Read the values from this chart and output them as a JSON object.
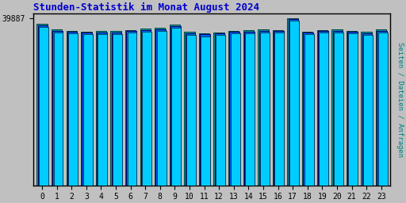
{
  "title": "Stunden-Statistik im Monat August 2024",
  "title_color": "#0000CC",
  "ylabel": "Seiten / Dateien / Anfragen",
  "ylabel_color": "#008080",
  "background_color": "#C0C0C0",
  "plot_bg_color": "#C0C0C0",
  "border_color": "#000000",
  "hours": [
    0,
    1,
    2,
    3,
    4,
    5,
    6,
    7,
    8,
    9,
    10,
    11,
    12,
    13,
    14,
    15,
    16,
    17,
    18,
    19,
    20,
    21,
    22,
    23
  ],
  "ytick_label": "39887",
  "ytick_value": 39887,
  "bar_groups": [
    {
      "name": "Seiten",
      "color": "#009999",
      "edge_color": "#004444",
      "values": [
        38500,
        37200,
        36900,
        36700,
        36800,
        36800,
        37100,
        37400,
        37600,
        38300,
        36600,
        36300,
        36500,
        36900,
        37000,
        37200,
        37100,
        39887,
        36700,
        37100,
        37200,
        36900,
        36600,
        37200
      ]
    },
    {
      "name": "Dateien",
      "color": "#0066FF",
      "edge_color": "#000066",
      "values": [
        38200,
        36900,
        36600,
        36400,
        36500,
        36500,
        36800,
        37100,
        37300,
        38000,
        36300,
        36000,
        36200,
        36600,
        36700,
        36900,
        36800,
        39600,
        36400,
        36800,
        36900,
        36600,
        36300,
        36900
      ]
    },
    {
      "name": "Anfragen",
      "color": "#00CCFF",
      "edge_color": "#004466",
      "values": [
        37800,
        36500,
        36200,
        36000,
        36100,
        36100,
        36400,
        36700,
        36900,
        37600,
        35900,
        35600,
        35800,
        36200,
        36300,
        36500,
        36400,
        39300,
        36000,
        36400,
        36500,
        36200,
        35900,
        36500
      ]
    }
  ],
  "ylim_min": 34000,
  "ylim_max": 41000,
  "ytick_pos": 39887,
  "figsize": [
    5.12,
    2.56
  ],
  "dpi": 100
}
